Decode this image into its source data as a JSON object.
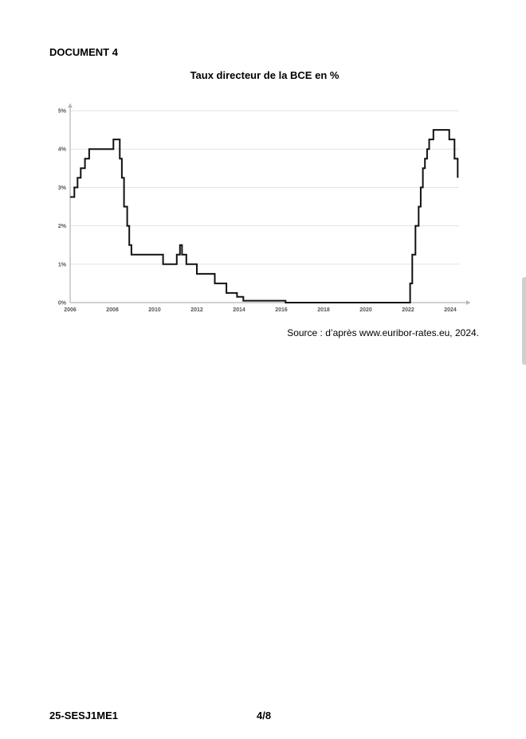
{
  "document": {
    "label": "DOCUMENT 4",
    "source": "Source : d’après www.euribor-rates.eu, 2024.",
    "footer_code": "25-SESJ1ME1",
    "footer_page": "4/8"
  },
  "colors": {
    "line": "#111111",
    "grid": "#e2e2e2",
    "axis": "#b5b5b5",
    "tick_text": "#555555"
  },
  "chart_data": {
    "type": "line",
    "title": "Taux directeur de la BCE en %",
    "xlabel": "",
    "ylabel": "",
    "xlim": [
      2006,
      2024.9
    ],
    "ylim": [
      0,
      5
    ],
    "x_ticks": [
      2006,
      2008,
      2010,
      2012,
      2014,
      2016,
      2018,
      2020,
      2022,
      2024
    ],
    "x_tick_labels": [
      "2006",
      "2008",
      "2010",
      "2012",
      "2014",
      "2016",
      "2018",
      "2020",
      "2022",
      "2024"
    ],
    "y_ticks": [
      0,
      1,
      2,
      3,
      4,
      5
    ],
    "y_tick_labels": [
      "0%",
      "1%",
      "2%",
      "3%",
      "4%",
      "5%"
    ],
    "grid": true,
    "step": true,
    "series": [
      {
        "x": [
          2006.0,
          2006.2,
          2006.35,
          2006.5,
          2006.7,
          2006.9,
          2007.45,
          2008.05,
          2008.35,
          2008.45,
          2008.55,
          2008.7,
          2008.8,
          2008.9,
          2010.4,
          2011.05,
          2011.2,
          2011.3,
          2011.5,
          2012.0,
          2012.85,
          2013.4,
          2013.9,
          2014.2,
          2014.4,
          2015.8,
          2016.2,
          2020.0,
          2022.0,
          2022.1,
          2022.2,
          2022.35,
          2022.5,
          2022.6,
          2022.7,
          2022.8,
          2022.9,
          2023.0,
          2023.2,
          2023.7,
          2023.95,
          2024.2,
          2024.35
        ],
        "y": [
          2.75,
          3.0,
          3.25,
          3.5,
          3.75,
          4.0,
          4.0,
          4.25,
          3.75,
          3.25,
          2.5,
          2.0,
          1.5,
          1.25,
          1.0,
          1.25,
          1.5,
          1.25,
          1.0,
          0.75,
          0.5,
          0.25,
          0.15,
          0.05,
          0.05,
          0.05,
          0.0,
          0.0,
          0.0,
          0.5,
          1.25,
          2.0,
          2.5,
          3.0,
          3.5,
          3.75,
          4.0,
          4.25,
          4.5,
          4.5,
          4.25,
          3.75,
          3.25
        ]
      }
    ]
  }
}
